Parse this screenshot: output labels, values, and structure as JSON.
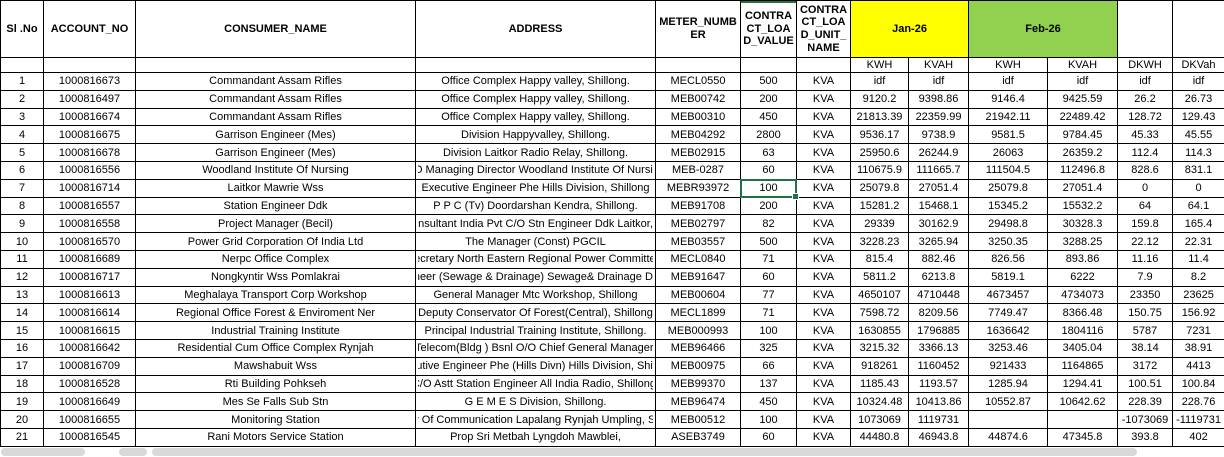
{
  "colors": {
    "jan_header_bg": "#FFFF00",
    "feb_header_bg": "#92D050",
    "selection_green": "#1F7245",
    "grid_border": "#000000"
  },
  "table": {
    "headers": {
      "sl_no": "Sl .No",
      "account_no": "ACCOUNT_NO",
      "consumer_name": "CONSUMER_NAME",
      "address": "ADDRESS",
      "meter_number": "METER_NUMBER",
      "contract_load_value": "CONTRACT_LOAD_VALUE",
      "contract_load_unit_name": "CONTRACT_LOAD_UNIT_NAME"
    },
    "month_groups": [
      {
        "label": "Jan-26",
        "bg": "#FFFF00"
      },
      {
        "label": "Feb-26",
        "bg": "#92D050"
      }
    ],
    "sub_headers": {
      "jan_kwh": "KWH",
      "jan_kvah": "KVAH",
      "feb_kwh": "KWH",
      "feb_kvah": "KVAH",
      "dkwh": "DKWH",
      "dkvah": "DKVah"
    },
    "rows": [
      {
        "sl": "1",
        "account": "1000816673",
        "consumer": "Commandant Assam Rifles",
        "address": "Office Complex Happy valley, Shillong.",
        "meter": "MECL0550",
        "load_value": "500",
        "load_unit": "KVA",
        "jan_kwh": "idf",
        "jan_kvah": "idf",
        "feb_kwh": "idf",
        "feb_kvah": "idf",
        "dkwh": "idf",
        "dkvah": "idf"
      },
      {
        "sl": "2",
        "account": "1000816497",
        "consumer": "Commandant Assam Rifles",
        "address": "Office Complex Happy valley, Shillong.",
        "meter": "MEB00742",
        "load_value": "200",
        "load_unit": "KVA",
        "jan_kwh": "9120.2",
        "jan_kvah": "9398.86",
        "feb_kwh": "9146.4",
        "feb_kvah": "9425.59",
        "dkwh": "26.2",
        "dkvah": "26.73"
      },
      {
        "sl": "3",
        "account": "1000816674",
        "consumer": "Commandant Assam Rifles",
        "address": "Office Complex Happy valley, Shillong.",
        "meter": "MEB00310",
        "load_value": "450",
        "load_unit": "KVA",
        "jan_kwh": "21813.39",
        "jan_kvah": "22359.99",
        "feb_kwh": "21942.11",
        "feb_kvah": "22489.42",
        "dkwh": "128.72",
        "dkvah": "129.43"
      },
      {
        "sl": "4",
        "account": "1000816675",
        "consumer": "Garrison Engineer (Mes)",
        "address": "Division Happyvalley, Shillong.",
        "meter": "MEB04292",
        "load_value": "2800",
        "load_unit": "KVA",
        "jan_kwh": "9536.17",
        "jan_kvah": "9738.9",
        "feb_kwh": "9581.5",
        "feb_kvah": "9784.45",
        "dkwh": "45.33",
        "dkvah": "45.55"
      },
      {
        "sl": "5",
        "account": "1000816678",
        "consumer": "Garrison Engineer (Mes)",
        "address": "Division Laitkor Radio Relay, Shillong.",
        "meter": "MEB02915",
        "load_value": "63",
        "load_unit": "KVA",
        "jan_kwh": "25950.6",
        "jan_kvah": "26244.9",
        "feb_kwh": "26063",
        "feb_kvah": "26359.2",
        "dkwh": "112.4",
        "dkvah": "114.3"
      },
      {
        "sl": "6",
        "account": "1000816556",
        "consumer": "Woodland Institute Of Nursing",
        "address": "C/O Managing Director Woodland Institute Of Nursing,",
        "meter": "MEB-0287",
        "load_value": "60",
        "load_unit": "KVA",
        "jan_kwh": "110675.9",
        "jan_kvah": "111665.7",
        "feb_kwh": "111504.5",
        "feb_kvah": "112496.8",
        "dkwh": "828.6",
        "dkvah": "831.1"
      },
      {
        "sl": "7",
        "account": "1000816714",
        "consumer": "Laitkor Mawrie Wss",
        "address": "Executive Engineer Phe Hills Division, Shillong",
        "meter": "MEBR93972",
        "load_value": "100",
        "load_unit": "KVA",
        "jan_kwh": "25079.8",
        "jan_kvah": "27051.4",
        "feb_kwh": "25079.8",
        "feb_kvah": "27051.4",
        "dkwh": "0",
        "dkvah": "0"
      },
      {
        "sl": "8",
        "account": "1000816557",
        "consumer": "Station Engineer Ddk",
        "address": "P P C (Tv) Doordarshan Kendra, Shillong.",
        "meter": "MEB91708",
        "load_value": "200",
        "load_unit": "KVA",
        "jan_kwh": "15281.2",
        "jan_kvah": "15468.1",
        "feb_kwh": "15345.2",
        "feb_kvah": "15532.2",
        "dkwh": "64",
        "dkvah": "64.1"
      },
      {
        "sl": "9",
        "account": "1000816558",
        "consumer": "Project Manager (Becil)",
        "address": "st Engg Consultant India Pvt C/O Stn Engineer Ddk Laitkor, Shillong. #",
        "meter": "MEB02797",
        "load_value": "82",
        "load_unit": "KVA",
        "jan_kwh": "29339",
        "jan_kvah": "30162.9",
        "feb_kwh": "29498.8",
        "feb_kvah": "30328.3",
        "dkwh": "159.8",
        "dkvah": "165.4"
      },
      {
        "sl": "10",
        "account": "1000816570",
        "consumer": "Power Grid Corporation Of India Ltd",
        "address": "The Manager (Const) PGCIL",
        "meter": "MEB03557",
        "load_value": "500",
        "load_unit": "KVA",
        "jan_kwh": "3228.23",
        "jan_kvah": "3265.94",
        "feb_kwh": "3250.35",
        "feb_kvah": "3288.25",
        "dkwh": "22.12",
        "dkvah": "22.31"
      },
      {
        "sl": "11",
        "account": "1000816689",
        "consumer": "Nerpc Office Complex",
        "address": "lember Secretary North Eastern Regional Power Committee, Shillon",
        "meter": "MECL0840",
        "load_value": "71",
        "load_unit": "KVA",
        "jan_kwh": "815.4",
        "jan_kvah": "882.46",
        "feb_kwh": "826.56",
        "feb_kvah": "893.86",
        "dkwh": "11.16",
        "dkvah": "11.4"
      },
      {
        "sl": "12",
        "account": "1000816717",
        "consumer": "Nongkyntir Wss Pomlakrai",
        "address": "utive Engineer (Sewage & Drainage) Sewage& Drainage Division, Shi",
        "meter": "MEB91647",
        "load_value": "60",
        "load_unit": "KVA",
        "jan_kwh": "5811.2",
        "jan_kvah": "6213.8",
        "feb_kwh": "5819.1",
        "feb_kvah": "6222",
        "dkwh": "7.9",
        "dkvah": "8.2"
      },
      {
        "sl": "13",
        "account": "1000816613",
        "consumer": "Meghalaya Transport Corp Workshop",
        "address": "General Manager Mtc Workshop, Shillong",
        "meter": "MEB00604",
        "load_value": "77",
        "load_unit": "KVA",
        "jan_kwh": "4650107",
        "jan_kvah": "4710448",
        "feb_kwh": "4673457",
        "feb_kvah": "4734073",
        "dkwh": "23350",
        "dkvah": "23625"
      },
      {
        "sl": "14",
        "account": "1000816614",
        "consumer": "Regional Office Forest & Enviroment Ner",
        "address": "Deputy Conservator Of Forest(Central), Shillong",
        "meter": "MECL1899",
        "load_value": "71",
        "load_unit": "KVA",
        "jan_kwh": "7598.72",
        "jan_kvah": "8209.56",
        "feb_kwh": "7749.47",
        "feb_kvah": "8366.48",
        "dkwh": "150.75",
        "dkvah": "156.92"
      },
      {
        "sl": "15",
        "account": "1000816615",
        "consumer": "Industrial Training Institute",
        "address": "Principal Industrial Training Institute, Shillong.",
        "meter": "MEB000993",
        "load_value": "100",
        "load_unit": "KVA",
        "jan_kwh": "1630855",
        "jan_kvah": "1796885",
        "feb_kwh": "1636642",
        "feb_kvah": "1804116",
        "dkwh": "5787",
        "dkvah": "7231"
      },
      {
        "sl": "16",
        "account": "1000816642",
        "consumer": "Residential Cum Office Complex Rynjah",
        "address": "Asst Dir Telecom(Bldg ) Bsnl O/O Chief General Manager Telecom",
        "meter": "MEB96466",
        "load_value": "325",
        "load_unit": "KVA",
        "jan_kwh": "3215.32",
        "jan_kvah": "3366.13",
        "feb_kwh": "3253.46",
        "feb_kvah": "3405.04",
        "dkwh": "38.14",
        "dkvah": "38.91"
      },
      {
        "sl": "17",
        "account": "1000816709",
        "consumer": "Mawshabuit Wss",
        "address": "Executive Engineer Phe (Hills Divn) Hills Division, Shillong.",
        "meter": "MEB00975",
        "load_value": "66",
        "load_unit": "KVA",
        "jan_kwh": "918261",
        "jan_kvah": "1160452",
        "feb_kwh": "921433",
        "feb_kvah": "1164865",
        "dkwh": "3172",
        "dkvah": "4413"
      },
      {
        "sl": "18",
        "account": "1000816528",
        "consumer": "Rti Building Pohkseh",
        "address": "C/O Astt Station Engineer All India Radio, Shillong.",
        "meter": "MEB99370",
        "load_value": "137",
        "load_unit": "KVA",
        "jan_kwh": "1185.43",
        "jan_kvah": "1193.57",
        "feb_kwh": "1285.94",
        "feb_kvah": "1294.41",
        "dkwh": "100.51",
        "dkvah": "100.84"
      },
      {
        "sl": "19",
        "account": "1000816649",
        "consumer": "Mes Se Falls Sub Stn",
        "address": "G E M E S Division, Shillong.",
        "meter": "MEB96474",
        "load_value": "450",
        "load_unit": "KVA",
        "jan_kwh": "10324.48",
        "jan_kvah": "10413.86",
        "feb_kwh": "10552.87",
        "feb_kvah": "10642.62",
        "dkwh": "228.39",
        "dkvah": "228.76"
      },
      {
        "sl": "20",
        "account": "1000816655",
        "consumer": "Monitoring Station",
        "address": "Ministry Of Communication Lapalang Rynjah Umpling, Shillong.",
        "meter": "MEB00512",
        "load_value": "100",
        "load_unit": "KVA",
        "jan_kwh": "1073069",
        "jan_kvah": "1119731",
        "feb_kwh": "",
        "feb_kvah": "",
        "dkwh": "-1073069",
        "dkvah": "-1119731"
      },
      {
        "sl": "21",
        "account": "1000816545",
        "consumer": "Rani Motors Service Station",
        "address": "Prop Sri Metbah Lyngdoh Mawblei,",
        "meter": "ASEB3749",
        "load_value": "60",
        "load_unit": "KVA",
        "jan_kwh": "44480.8",
        "jan_kvah": "46943.8",
        "feb_kwh": "44874.6",
        "feb_kvah": "47345.8",
        "dkwh": "393.8",
        "dkvah": "402"
      }
    ]
  },
  "selection": {
    "row_index": 6,
    "field": "load_value",
    "value": "100"
  }
}
